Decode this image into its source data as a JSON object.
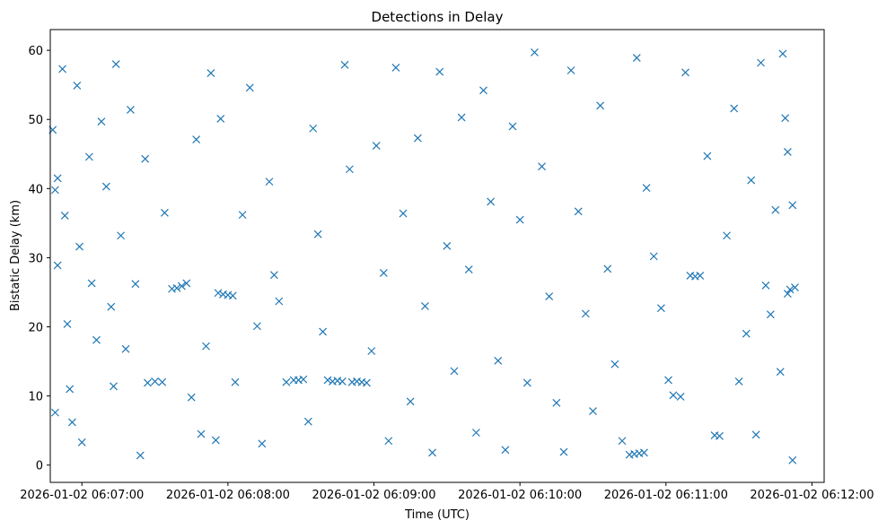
{
  "chart_data": {
    "type": "scatter",
    "title": "Detections in Delay",
    "xlabel": "Time (UTC)",
    "ylabel": "Bistatic Delay (km)",
    "marker": "x",
    "color": "#1f77b4",
    "xlim": [
      "2026-01-02 06:06:47",
      "2026-01-02 06:12:05"
    ],
    "ylim": [
      -2.5,
      63
    ],
    "xticks": [
      "2026-01-02 06:07:00",
      "2026-01-02 06:08:00",
      "2026-01-02 06:09:00",
      "2026-01-02 06:10:00",
      "2026-01-02 06:11:00",
      "2026-01-02 06:12:00"
    ],
    "yticks": [
      0,
      10,
      20,
      30,
      40,
      50,
      60
    ],
    "grid": false,
    "series": [
      {
        "points": [
          [
            "2026-01-02 06:06:48",
            48.5
          ],
          [
            "2026-01-02 06:06:49",
            39.8
          ],
          [
            "2026-01-02 06:06:50",
            41.5
          ],
          [
            "2026-01-02 06:06:50",
            28.9
          ],
          [
            "2026-01-02 06:06:49",
            7.6
          ],
          [
            "2026-01-02 06:06:52",
            57.3
          ],
          [
            "2026-01-02 06:06:53",
            36.1
          ],
          [
            "2026-01-02 06:06:54",
            20.4
          ],
          [
            "2026-01-02 06:06:55",
            11.0
          ],
          [
            "2026-01-02 06:06:56",
            6.2
          ],
          [
            "2026-01-02 06:06:58",
            54.9
          ],
          [
            "2026-01-02 06:06:59",
            31.6
          ],
          [
            "2026-01-02 06:07:00",
            3.3
          ],
          [
            "2026-01-02 06:07:03",
            44.6
          ],
          [
            "2026-01-02 06:07:04",
            26.3
          ],
          [
            "2026-01-02 06:07:06",
            18.1
          ],
          [
            "2026-01-02 06:07:08",
            49.7
          ],
          [
            "2026-01-02 06:07:10",
            40.3
          ],
          [
            "2026-01-02 06:07:12",
            22.9
          ],
          [
            "2026-01-02 06:07:13",
            11.4
          ],
          [
            "2026-01-02 06:07:14",
            58.0
          ],
          [
            "2026-01-02 06:07:16",
            33.2
          ],
          [
            "2026-01-02 06:07:18",
            16.8
          ],
          [
            "2026-01-02 06:07:20",
            51.4
          ],
          [
            "2026-01-02 06:07:22",
            26.2
          ],
          [
            "2026-01-02 06:07:24",
            1.4
          ],
          [
            "2026-01-02 06:07:26",
            44.3
          ],
          [
            "2026-01-02 06:07:27",
            11.9
          ],
          [
            "2026-01-02 06:07:30",
            12.1
          ],
          [
            "2026-01-02 06:07:33",
            12.0
          ],
          [
            "2026-01-02 06:07:34",
            36.5
          ],
          [
            "2026-01-02 06:07:37",
            25.5
          ],
          [
            "2026-01-02 06:07:39",
            25.6
          ],
          [
            "2026-01-02 06:07:41",
            25.9
          ],
          [
            "2026-01-02 06:07:43",
            26.3
          ],
          [
            "2026-01-02 06:07:45",
            9.8
          ],
          [
            "2026-01-02 06:07:47",
            47.1
          ],
          [
            "2026-01-02 06:07:49",
            4.5
          ],
          [
            "2026-01-02 06:07:51",
            17.2
          ],
          [
            "2026-01-02 06:07:53",
            56.7
          ],
          [
            "2026-01-02 06:07:55",
            3.6
          ],
          [
            "2026-01-02 06:07:56",
            24.9
          ],
          [
            "2026-01-02 06:07:58",
            24.7
          ],
          [
            "2026-01-02 06:08:00",
            24.6
          ],
          [
            "2026-01-02 06:08:02",
            24.5
          ],
          [
            "2026-01-02 06:07:57",
            50.1
          ],
          [
            "2026-01-02 06:08:03",
            12.0
          ],
          [
            "2026-01-02 06:08:06",
            36.2
          ],
          [
            "2026-01-02 06:08:09",
            54.6
          ],
          [
            "2026-01-02 06:08:12",
            20.1
          ],
          [
            "2026-01-02 06:08:14",
            3.1
          ],
          [
            "2026-01-02 06:08:17",
            41.0
          ],
          [
            "2026-01-02 06:08:19",
            27.5
          ],
          [
            "2026-01-02 06:08:21",
            23.7
          ],
          [
            "2026-01-02 06:08:24",
            12.0
          ],
          [
            "2026-01-02 06:08:27",
            12.3
          ],
          [
            "2026-01-02 06:08:29",
            12.3
          ],
          [
            "2026-01-02 06:08:31",
            12.4
          ],
          [
            "2026-01-02 06:08:33",
            6.3
          ],
          [
            "2026-01-02 06:08:35",
            48.7
          ],
          [
            "2026-01-02 06:08:37",
            33.4
          ],
          [
            "2026-01-02 06:08:39",
            19.3
          ],
          [
            "2026-01-02 06:08:41",
            12.3
          ],
          [
            "2026-01-02 06:08:43",
            12.1
          ],
          [
            "2026-01-02 06:08:45",
            12.2
          ],
          [
            "2026-01-02 06:08:47",
            12.1
          ],
          [
            "2026-01-02 06:08:48",
            57.9
          ],
          [
            "2026-01-02 06:08:50",
            42.8
          ],
          [
            "2026-01-02 06:08:51",
            12.0
          ],
          [
            "2026-01-02 06:08:53",
            12.1
          ],
          [
            "2026-01-02 06:08:55",
            12.0
          ],
          [
            "2026-01-02 06:08:57",
            11.9
          ],
          [
            "2026-01-02 06:08:59",
            16.5
          ],
          [
            "2026-01-02 06:09:01",
            46.2
          ],
          [
            "2026-01-02 06:09:04",
            27.8
          ],
          [
            "2026-01-02 06:09:06",
            3.5
          ],
          [
            "2026-01-02 06:09:09",
            57.5
          ],
          [
            "2026-01-02 06:09:12",
            36.4
          ],
          [
            "2026-01-02 06:09:15",
            9.2
          ],
          [
            "2026-01-02 06:09:18",
            47.3
          ],
          [
            "2026-01-02 06:09:21",
            23.0
          ],
          [
            "2026-01-02 06:09:24",
            1.8
          ],
          [
            "2026-01-02 06:09:27",
            56.9
          ],
          [
            "2026-01-02 06:09:30",
            31.7
          ],
          [
            "2026-01-02 06:09:33",
            13.6
          ],
          [
            "2026-01-02 06:09:36",
            50.3
          ],
          [
            "2026-01-02 06:09:39",
            28.3
          ],
          [
            "2026-01-02 06:09:42",
            4.7
          ],
          [
            "2026-01-02 06:09:45",
            54.2
          ],
          [
            "2026-01-02 06:09:48",
            38.1
          ],
          [
            "2026-01-02 06:09:51",
            15.1
          ],
          [
            "2026-01-02 06:09:54",
            2.2
          ],
          [
            "2026-01-02 06:09:57",
            49.0
          ],
          [
            "2026-01-02 06:10:00",
            35.5
          ],
          [
            "2026-01-02 06:10:03",
            11.9
          ],
          [
            "2026-01-02 06:10:06",
            59.7
          ],
          [
            "2026-01-02 06:10:09",
            43.2
          ],
          [
            "2026-01-02 06:10:12",
            24.4
          ],
          [
            "2026-01-02 06:10:15",
            9.0
          ],
          [
            "2026-01-02 06:10:18",
            1.9
          ],
          [
            "2026-01-02 06:10:21",
            57.1
          ],
          [
            "2026-01-02 06:10:24",
            36.7
          ],
          [
            "2026-01-02 06:10:27",
            21.9
          ],
          [
            "2026-01-02 06:10:30",
            7.8
          ],
          [
            "2026-01-02 06:10:33",
            52.0
          ],
          [
            "2026-01-02 06:10:36",
            28.4
          ],
          [
            "2026-01-02 06:10:39",
            14.6
          ],
          [
            "2026-01-02 06:10:42",
            3.5
          ],
          [
            "2026-01-02 06:10:45",
            1.5
          ],
          [
            "2026-01-02 06:10:47",
            1.6
          ],
          [
            "2026-01-02 06:10:49",
            1.7
          ],
          [
            "2026-01-02 06:10:51",
            1.8
          ],
          [
            "2026-01-02 06:10:48",
            58.9
          ],
          [
            "2026-01-02 06:10:52",
            40.1
          ],
          [
            "2026-01-02 06:10:55",
            30.2
          ],
          [
            "2026-01-02 06:10:58",
            22.7
          ],
          [
            "2026-01-02 06:11:01",
            12.3
          ],
          [
            "2026-01-02 06:11:03",
            10.1
          ],
          [
            "2026-01-02 06:11:06",
            9.9
          ],
          [
            "2026-01-02 06:11:08",
            56.8
          ],
          [
            "2026-01-02 06:11:10",
            27.4
          ],
          [
            "2026-01-02 06:11:12",
            27.3
          ],
          [
            "2026-01-02 06:11:14",
            27.4
          ],
          [
            "2026-01-02 06:11:17",
            44.7
          ],
          [
            "2026-01-02 06:11:20",
            4.3
          ],
          [
            "2026-01-02 06:11:22",
            4.2
          ],
          [
            "2026-01-02 06:11:25",
            33.2
          ],
          [
            "2026-01-02 06:11:28",
            51.6
          ],
          [
            "2026-01-02 06:11:30",
            12.1
          ],
          [
            "2026-01-02 06:11:33",
            19.0
          ],
          [
            "2026-01-02 06:11:35",
            41.2
          ],
          [
            "2026-01-02 06:11:37",
            4.4
          ],
          [
            "2026-01-02 06:11:39",
            58.2
          ],
          [
            "2026-01-02 06:11:41",
            26.0
          ],
          [
            "2026-01-02 06:11:43",
            21.8
          ],
          [
            "2026-01-02 06:11:45",
            36.9
          ],
          [
            "2026-01-02 06:11:47",
            13.5
          ],
          [
            "2026-01-02 06:11:48",
            59.5
          ],
          [
            "2026-01-02 06:11:49",
            50.2
          ],
          [
            "2026-01-02 06:11:50",
            45.3
          ],
          [
            "2026-01-02 06:11:50",
            24.8
          ],
          [
            "2026-01-02 06:11:51",
            25.4
          ],
          [
            "2026-01-02 06:11:52",
            0.7
          ],
          [
            "2026-01-02 06:11:52",
            37.6
          ],
          [
            "2026-01-02 06:11:53",
            25.7
          ]
        ]
      }
    ]
  }
}
